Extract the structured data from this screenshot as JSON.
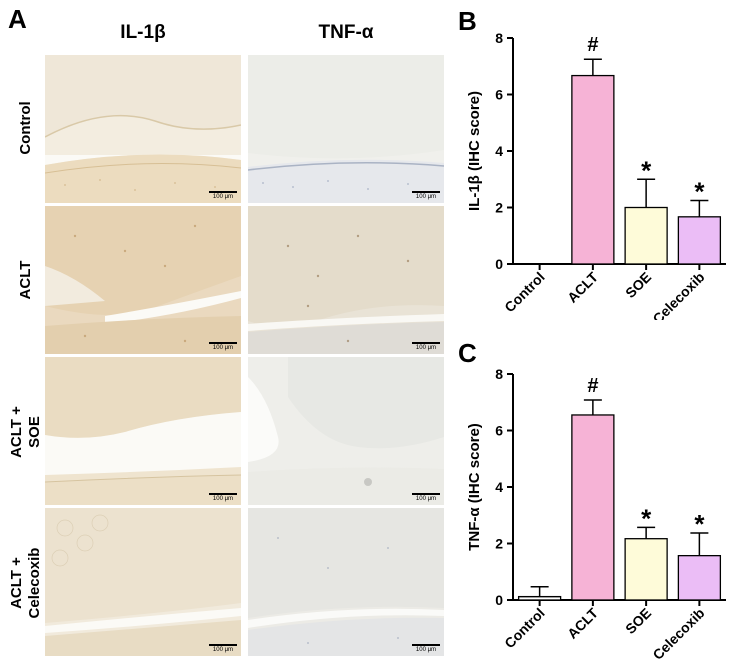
{
  "panels": {
    "a_letter": "A",
    "b_letter": "B",
    "c_letter": "C"
  },
  "micrographs": {
    "columns": [
      "IL-1β",
      "TNF-α"
    ],
    "rows": [
      {
        "line1": "Control",
        "line2": ""
      },
      {
        "line1": "ACLT",
        "line2": ""
      },
      {
        "line1": "ACLT +",
        "line2": "SOE"
      },
      {
        "line1": "ACLT +",
        "line2": "Celecoxib"
      }
    ],
    "scale_bar_label": "100 μm"
  },
  "colors": {
    "Control": "#ffffff",
    "ACLT": "#f6b3d6",
    "SOE": "#fefbd9",
    "Celecoxib": "#ebbdf6"
  },
  "chart_data": [
    {
      "type": "bar",
      "panel": "B",
      "categories": [
        "Control",
        "ACLT",
        "SOE",
        "Celecoxib"
      ],
      "values": [
        0,
        6.67,
        2.0,
        1.67
      ],
      "errors": [
        0,
        0.58,
        1.0,
        0.58
      ],
      "annotations": [
        "",
        "#",
        "*",
        "*"
      ],
      "ylabel": "IL-1β (IHC score)",
      "ylim": [
        0,
        8
      ],
      "yticks": [
        0,
        2,
        4,
        6,
        8
      ]
    },
    {
      "type": "bar",
      "panel": "C",
      "categories": [
        "Control",
        "ACLT",
        "SOE",
        "Celecoxib"
      ],
      "values": [
        0.12,
        6.55,
        2.17,
        1.57
      ],
      "errors": [
        0.35,
        0.53,
        0.4,
        0.8
      ],
      "annotations": [
        "",
        "#",
        "*",
        "*"
      ],
      "ylabel": "TNF-α (IHC score)",
      "ylim": [
        0,
        8
      ],
      "yticks": [
        0,
        2,
        4,
        6,
        8
      ]
    }
  ]
}
